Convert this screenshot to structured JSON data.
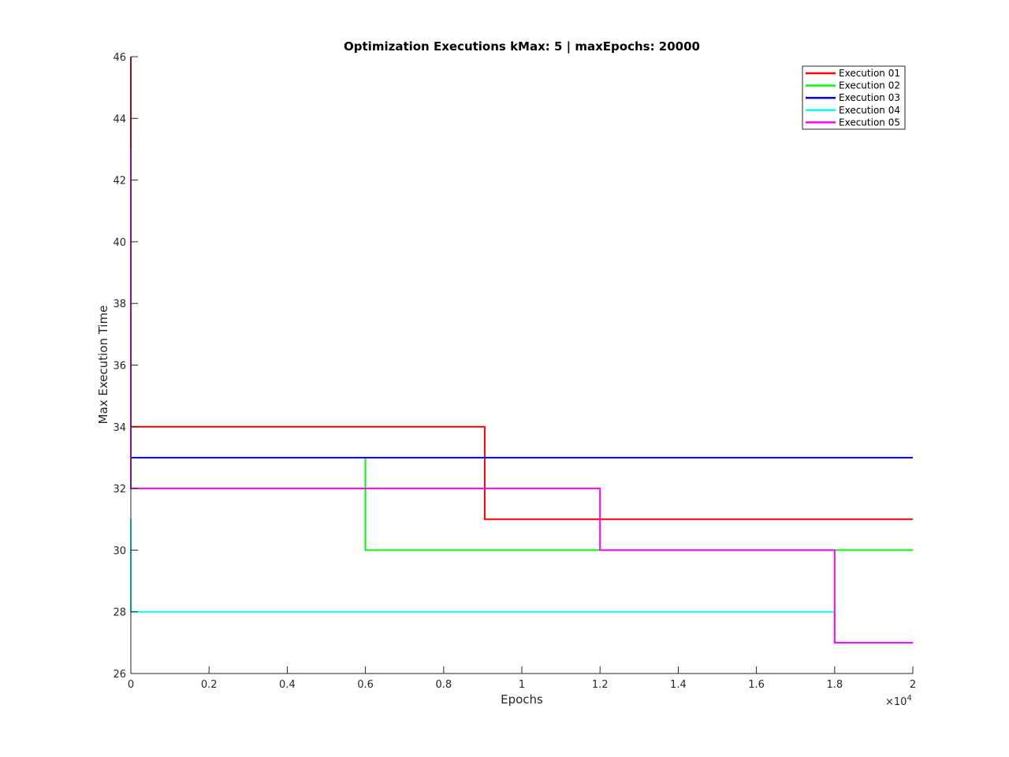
{
  "chart_data": {
    "type": "line",
    "title": "Optimization Executions kMax: 5 | maxEpochs: 20000",
    "xlabel": "Epochs",
    "ylabel": "Max Execution Time",
    "x_exponent_label": "×10",
    "x_exponent_power": "4",
    "xlim": [
      0,
      20000
    ],
    "ylim": [
      26,
      46
    ],
    "x_ticks": [
      0,
      2000,
      4000,
      6000,
      8000,
      10000,
      12000,
      14000,
      16000,
      18000,
      20000
    ],
    "x_tick_labels": [
      "0",
      "0.2",
      "0.4",
      "0.6",
      "0.8",
      "1",
      "1.2",
      "1.4",
      "1.6",
      "1.8",
      "2"
    ],
    "y_ticks": [
      26,
      28,
      30,
      32,
      34,
      36,
      38,
      40,
      42,
      44,
      46
    ],
    "y_tick_labels": [
      "26",
      "28",
      "30",
      "32",
      "34",
      "36",
      "38",
      "40",
      "42",
      "44",
      "46"
    ],
    "grid": false,
    "legend_position": "top-right",
    "series": [
      {
        "name": "Execution 01",
        "color": "#ff0000",
        "points": [
          [
            0,
            46
          ],
          [
            0,
            34
          ],
          [
            9050,
            34
          ],
          [
            9050,
            31
          ],
          [
            20000,
            31
          ]
        ]
      },
      {
        "name": "Execution 02",
        "color": "#00ff00",
        "points": [
          [
            0,
            33
          ],
          [
            6000,
            33
          ],
          [
            6000,
            30
          ],
          [
            20000,
            30
          ]
        ]
      },
      {
        "name": "Execution 03",
        "color": "#0000ff",
        "points": [
          [
            0,
            33
          ],
          [
            20000,
            33
          ]
        ]
      },
      {
        "name": "Execution 04",
        "color": "#00ffff",
        "points": [
          [
            0,
            31
          ],
          [
            0,
            28
          ],
          [
            18000,
            28
          ],
          [
            18000,
            27
          ],
          [
            20000,
            27
          ]
        ]
      },
      {
        "name": "Execution 05",
        "color": "#ff00ff",
        "points": [
          [
            0,
            43
          ],
          [
            0,
            32
          ],
          [
            12000,
            32
          ],
          [
            12000,
            30
          ],
          [
            18000,
            30
          ],
          [
            18000,
            27
          ],
          [
            20000,
            27
          ]
        ]
      }
    ]
  }
}
